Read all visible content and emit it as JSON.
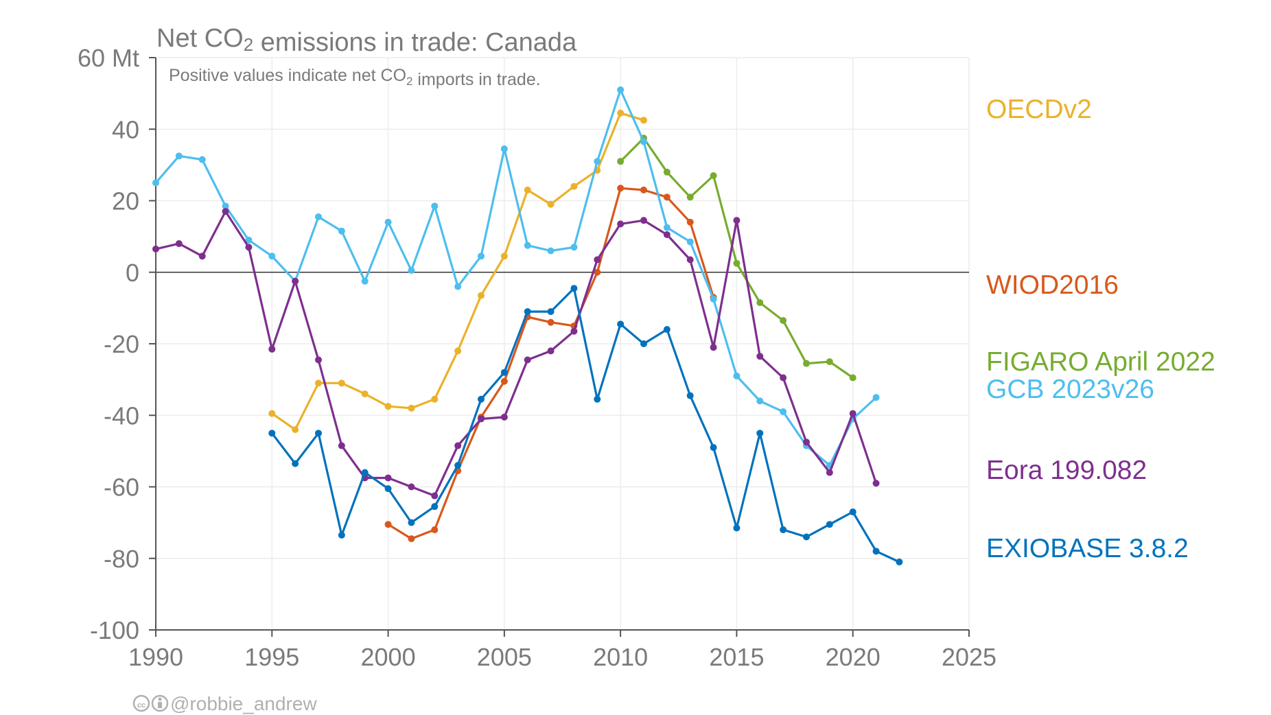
{
  "chart_data": {
    "type": "line",
    "title": "Net CO₂ emissions in trade: Canada",
    "subtitle": "Positive values indicate net CO₂ imports in trade.",
    "y_unit_label": "60 Mt",
    "xlim": [
      1990,
      2025
    ],
    "ylim": [
      -100,
      60
    ],
    "x_ticks": [
      "1990",
      "1995",
      "2000",
      "2005",
      "2010",
      "2015",
      "2020",
      "2025"
    ],
    "y_ticks": [
      "-100",
      "-80",
      "-60",
      "-40",
      "-20",
      "0",
      "20",
      "40"
    ],
    "grid": true,
    "legend_placement": "right",
    "credit": "@robbie_andrew",
    "series": [
      {
        "name": "OECDv2",
        "color": "#EBB12A",
        "x": [
          1995,
          1996,
          1997,
          1998,
          1999,
          2000,
          2001,
          2002,
          2003,
          2004,
          2005,
          2006,
          2007,
          2008,
          2009,
          2010,
          2011
        ],
        "y": [
          -39.5,
          -44,
          -31,
          -31,
          -34,
          -37.5,
          -38,
          -35.5,
          -22,
          -6.5,
          4.5,
          23,
          19,
          24,
          28.5,
          44.5,
          42.5
        ]
      },
      {
        "name": "WIOD2016",
        "color": "#D8581C",
        "x": [
          2000,
          2001,
          2002,
          2003,
          2004,
          2005,
          2006,
          2007,
          2008,
          2009,
          2010,
          2011,
          2012,
          2013,
          2014
        ],
        "y": [
          -70.5,
          -74.5,
          -72,
          -55.5,
          -40.5,
          -30.5,
          -12.5,
          -14,
          -15,
          0,
          23.5,
          23,
          21,
          14,
          -7
        ]
      },
      {
        "name": "FIGARO April 2022",
        "color": "#77AC30",
        "x": [
          2010,
          2011,
          2012,
          2013,
          2014,
          2015,
          2016,
          2017,
          2018,
          2019,
          2020
        ],
        "y": [
          31,
          37.5,
          28,
          21,
          27,
          2.5,
          -8.5,
          -13.5,
          -25.5,
          -25,
          -29.5
        ]
      },
      {
        "name": "GCB 2023v26",
        "color": "#4DBEEE",
        "x": [
          1990,
          1991,
          1992,
          1993,
          1994,
          1995,
          1996,
          1997,
          1998,
          1999,
          2000,
          2001,
          2002,
          2003,
          2004,
          2005,
          2006,
          2007,
          2008,
          2009,
          2010,
          2011,
          2012,
          2013,
          2014,
          2015,
          2016,
          2017,
          2018,
          2019,
          2020,
          2021
        ],
        "y": [
          25,
          32.5,
          31.5,
          18.5,
          9,
          4.5,
          -2.5,
          15.5,
          11.5,
          -2.5,
          14,
          0.5,
          18.5,
          -4,
          4.5,
          34.5,
          7.5,
          6,
          7,
          31,
          51,
          36.5,
          12.5,
          8.5,
          -7.5,
          -29,
          -36,
          -39,
          -48.5,
          -54,
          -41,
          -35
        ]
      },
      {
        "name": "Eora 199.082",
        "color": "#7E2F8E",
        "x": [
          1990,
          1991,
          1992,
          1993,
          1994,
          1995,
          1996,
          1997,
          1998,
          1999,
          2000,
          2001,
          2002,
          2003,
          2004,
          2005,
          2006,
          2007,
          2008,
          2009,
          2010,
          2011,
          2012,
          2013,
          2014,
          2015,
          2016,
          2017,
          2018,
          2019,
          2020,
          2021
        ],
        "y": [
          6.5,
          8,
          4.5,
          17,
          7,
          -21.5,
          -2.5,
          -24.5,
          -48.5,
          -57.5,
          -57.5,
          -60,
          -62.5,
          -48.5,
          -41,
          -40.5,
          -24.5,
          -22,
          -16.5,
          3.5,
          13.5,
          14.5,
          10.5,
          3.5,
          -21,
          14.5,
          -23.5,
          -29.5,
          -47.5,
          -56,
          -39.5,
          -59
        ]
      },
      {
        "name": "EXIOBASE 3.8.2",
        "color": "#0072BD",
        "x": [
          1995,
          1996,
          1997,
          1998,
          1999,
          2000,
          2001,
          2002,
          2003,
          2004,
          2005,
          2006,
          2007,
          2008,
          2009,
          2010,
          2011,
          2012,
          2013,
          2014,
          2015,
          2016,
          2017,
          2018,
          2019,
          2020,
          2021,
          2022
        ],
        "y": [
          -45,
          -53.5,
          -45,
          -73.5,
          -56,
          -60.5,
          -70,
          -65.5,
          -54,
          -35.5,
          -28,
          -11,
          -11,
          -4.5,
          -35.5,
          -14.5,
          -20,
          -16,
          -34.5,
          -49,
          -71.5,
          -45,
          -72,
          -74,
          -70.5,
          -67,
          -78,
          -81
        ]
      }
    ]
  }
}
